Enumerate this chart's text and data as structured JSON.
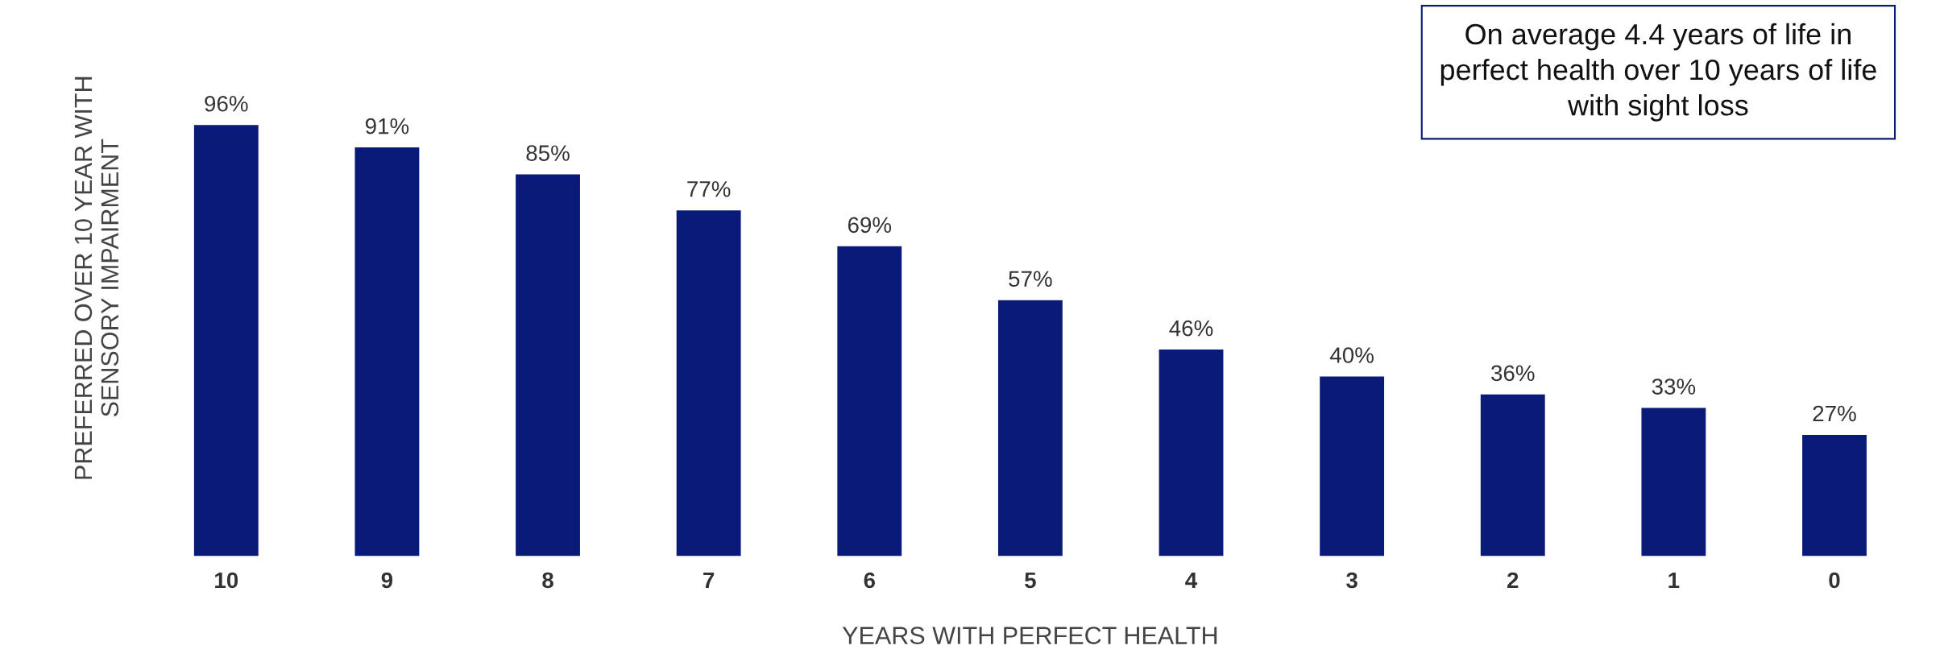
{
  "chart_data": {
    "type": "bar",
    "xlabel": "YEARS WITH PERFECT HEALTH",
    "ylabel": "PREFERRED OVER 10 YEAR WITH\nSENSORY IMPAIRMENT",
    "categories": [
      "10",
      "9",
      "8",
      "7",
      "6",
      "5",
      "4",
      "3",
      "2",
      "1",
      "0"
    ],
    "values": [
      96,
      91,
      85,
      77,
      69,
      57,
      46,
      40,
      36,
      33,
      27
    ],
    "value_labels": [
      "96%",
      "91%",
      "85%",
      "77%",
      "69%",
      "57%",
      "46%",
      "40%",
      "36%",
      "33%",
      "27%"
    ],
    "color": "#0a1a78",
    "annotations": [
      "On average 4.4 years of life in\nperfect health over 10 years of life\nwith sight loss"
    ],
    "grid": false
  }
}
